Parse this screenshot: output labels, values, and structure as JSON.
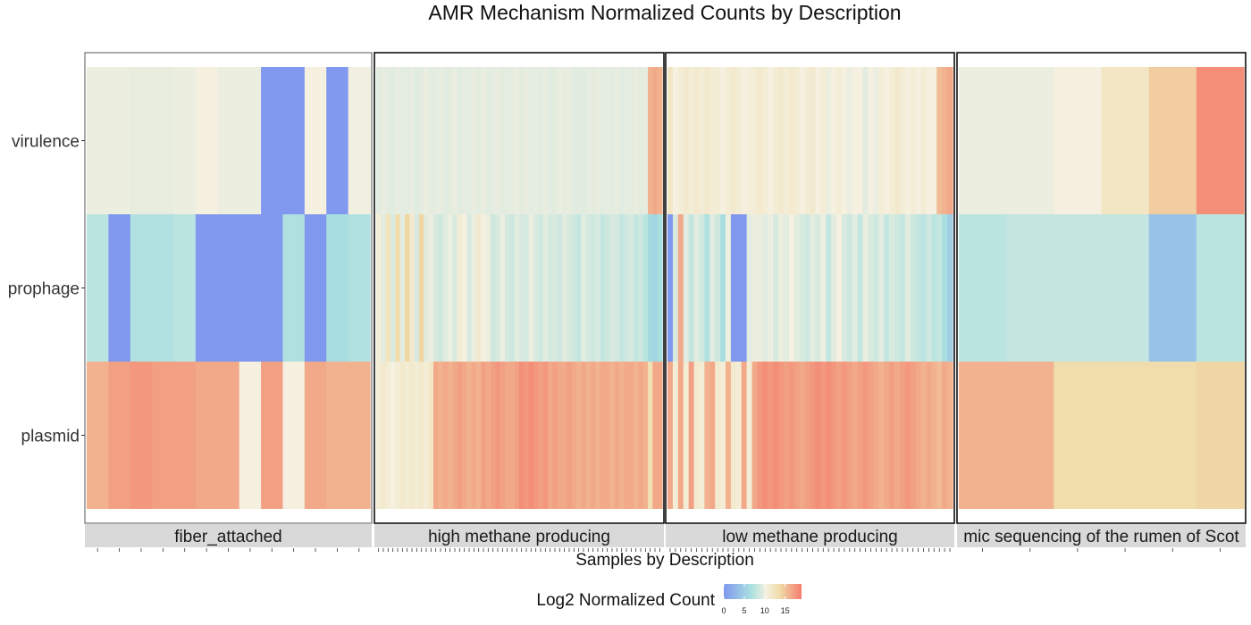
{
  "chart_data": {
    "type": "heatmap",
    "title": "AMR Mechanism Normalized Counts by Description",
    "xlabel": "Samples by Description",
    "rows": [
      "virulence",
      "prophage",
      "plasmid"
    ],
    "legend": {
      "title": "Log2 Normalized Count",
      "ticks": [
        "0",
        "5",
        "10",
        "15"
      ],
      "min": 0,
      "max": 19,
      "placement": "bottom"
    },
    "color_scale": [
      "#8098ee",
      "#a9e0e0",
      "#f5f0e0",
      "#f0dca8",
      "#f47c6e"
    ],
    "panels": [
      {
        "label": "fiber_attached",
        "values": {
          "virulence": [
            10,
            10,
            9.8,
            9.8,
            10,
            10.5,
            10,
            10,
            0,
            0,
            10.5,
            0,
            10.2
          ],
          "prophage": [
            7.5,
            0,
            7,
            7,
            7.5,
            0,
            0,
            0,
            0,
            7,
            0,
            6.5,
            7
          ],
          "plasmid": [
            16,
            17,
            17.5,
            17,
            17,
            16.5,
            16.5,
            10.5,
            17,
            10.5,
            16.5,
            16,
            16
          ]
        }
      },
      {
        "label": "high methane producing",
        "values": {
          "virulence": [
            9.5,
            9.8,
            9.6,
            9.4,
            9.8,
            9.5,
            9.6,
            9.8,
            9.4,
            9.6,
            9.9,
            9.5,
            9.7,
            9.8,
            9.5,
            9.6,
            9.9,
            9.4,
            9.7,
            9.5,
            9.8,
            9.6,
            9.9,
            9.5,
            9.7,
            9.8,
            9.6,
            9.5,
            9.7,
            9.9,
            9.6,
            9.8,
            9.5,
            9.7,
            9.6,
            9.8,
            9.5,
            9.6,
            9.9,
            9.7,
            9.8,
            9.5,
            9.6,
            9.4,
            9.7,
            9.6,
            9.8,
            9.5,
            9.7,
            9.6,
            9.8,
            9.5,
            9.7,
            9.6,
            9.8,
            9.6,
            9.7,
            16,
            16.5,
            16
          ],
          "prophage": [
            11,
            9.5,
            12.5,
            9,
            13.5,
            9.5,
            14,
            11.5,
            9,
            14,
            9.5,
            10,
            9,
            8.5,
            9.5,
            10,
            9,
            11,
            10.5,
            9,
            10,
            11.5,
            10.5,
            10,
            8.5,
            9,
            10,
            8.8,
            8.5,
            9.5,
            9,
            8.8,
            10,
            9,
            8.5,
            9.5,
            8.8,
            9,
            8.5,
            9.5,
            9,
            8.5,
            8,
            9.5,
            8.8,
            8.5,
            9,
            8,
            8.5,
            9,
            8.8,
            8,
            8.5,
            9,
            8,
            8.5,
            7.5,
            6,
            5.5,
            6.5
          ],
          "plasmid": [
            11,
            11.5,
            11,
            10.5,
            11,
            11.5,
            11,
            11.5,
            11,
            11.5,
            11,
            12,
            16.5,
            16,
            16.5,
            16,
            16.5,
            17,
            16.5,
            16,
            16.5,
            16,
            17,
            16.5,
            17,
            17.5,
            17,
            16.5,
            16.5,
            17,
            18,
            17.5,
            18,
            17.5,
            17,
            17.5,
            16.5,
            17,
            16.5,
            16.5,
            17,
            16.5,
            16,
            16.5,
            16,
            16.5,
            16,
            16.5,
            16.5,
            16,
            16.5,
            16,
            16.5,
            16.5,
            16,
            16.5,
            16,
            13,
            16.5,
            16.5
          ]
        }
      },
      {
        "label": "low methane producing",
        "values": {
          "virulence": [
            12,
            10.5,
            11,
            11.5,
            11,
            11.5,
            11,
            11.5,
            11,
            11,
            10.5,
            11,
            11.5,
            11,
            10.5,
            10.8,
            11,
            11.5,
            11,
            10.5,
            11,
            11.5,
            11,
            11.5,
            11,
            10.5,
            11,
            11.5,
            10.5,
            11,
            10,
            10.5,
            11,
            10.5,
            10,
            10.5,
            10.5,
            9.5,
            10.5,
            10,
            11,
            10.5,
            11,
            11.5,
            11,
            10.5,
            11,
            10.5,
            11,
            10.5,
            10.5,
            15.5,
            16,
            16.5
          ],
          "prophage": [
            0,
            9,
            16.5,
            9.5,
            8,
            9.5,
            8.5,
            7,
            9.5,
            8.5,
            6.5,
            10,
            0,
            0,
            0,
            9.5,
            10,
            10,
            9.5,
            10,
            9,
            10,
            9.5,
            10.5,
            9.5,
            9,
            8.5,
            9.5,
            9,
            10,
            8,
            9.5,
            10.5,
            9,
            8.5,
            9.5,
            8,
            10,
            9,
            8.5,
            9.5,
            8,
            9,
            8.5,
            8,
            9.5,
            8.5,
            8,
            7.5,
            8.5,
            7.5,
            8,
            6.5,
            5
          ],
          "plasmid": [
            16.5,
            11,
            16.5,
            11,
            17,
            11.5,
            11,
            16,
            16.5,
            11.5,
            11,
            16,
            11.5,
            11,
            16.5,
            11,
            16.5,
            17.5,
            18,
            17.5,
            18,
            17.5,
            17,
            17.5,
            17,
            16.5,
            17,
            17.5,
            18,
            17.5,
            18,
            17.5,
            17,
            17.5,
            17,
            16.5,
            17,
            17.5,
            17,
            16.5,
            16,
            16.5,
            17,
            16.5,
            17,
            17.5,
            17,
            16.5,
            16,
            16.5,
            16,
            15.5,
            16.5,
            16
          ]
        }
      },
      {
        "label": "mic sequencing of the rumen of Scot",
        "values": {
          "virulence": [
            10,
            10,
            10.5,
            12,
            14.5,
            18
          ],
          "prophage": [
            7.5,
            8,
            8,
            8,
            4,
            7.5
          ],
          "plasmid": [
            16,
            16,
            13.5,
            13.5,
            13.5,
            14
          ]
        }
      }
    ]
  }
}
